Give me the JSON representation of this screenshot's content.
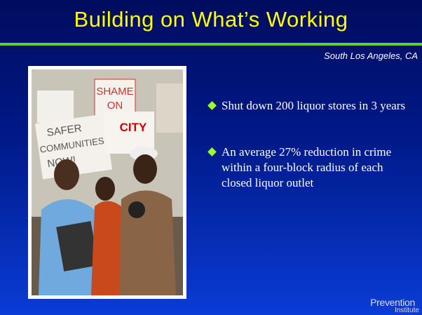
{
  "title": "Building on What’s Working",
  "subtitle": "South Los Angeles, CA",
  "bullets": [
    "Shut down 200 liquor stores in 3 years",
    "An average 27% reduction in crime within a four-block radius of each closed liquor outlet"
  ],
  "photo": {
    "signs": [
      "SHAME",
      "ON",
      "CITY",
      "SAFER",
      "COMMUNITIES",
      "NOW!"
    ]
  },
  "logo": {
    "line1": "Prevention",
    "line2": "Institute"
  }
}
